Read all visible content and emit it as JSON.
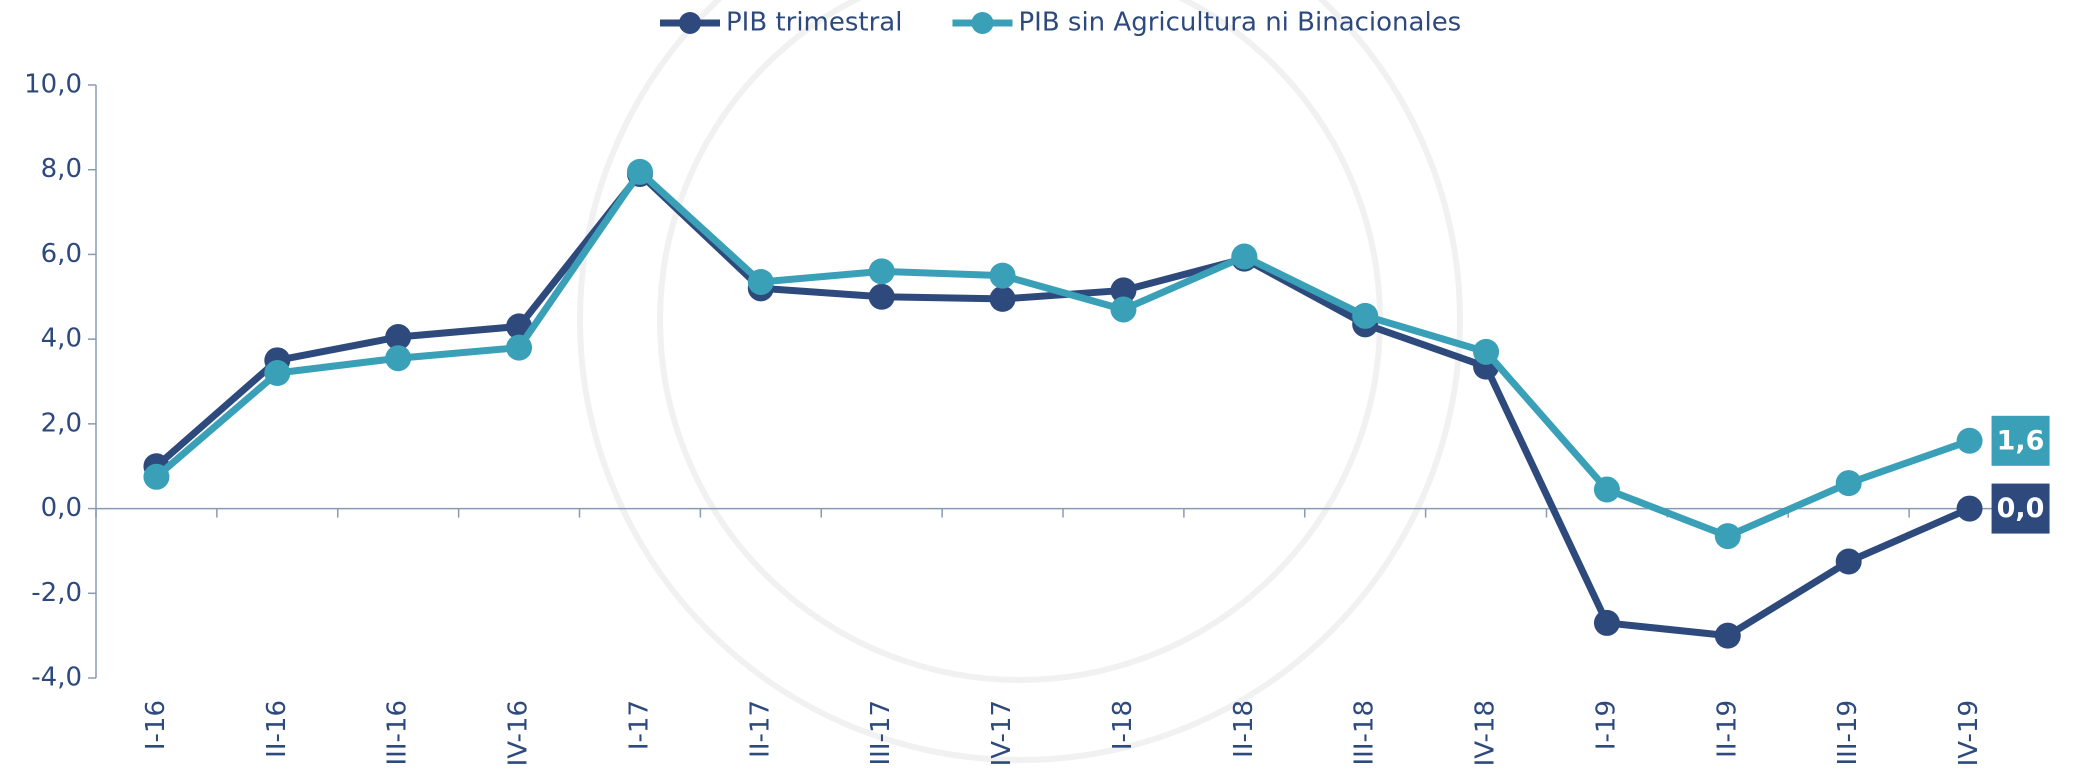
{
  "chart_data": {
    "type": "line",
    "categories": [
      "I-16",
      "II-16",
      "III-16",
      "IV-16",
      "I-17",
      "II-17",
      "III-17",
      "IV-17",
      "I-18",
      "II-18",
      "III-18",
      "IV-18",
      "I-19",
      "II-19",
      "III-19",
      "IV-19"
    ],
    "series": [
      {
        "name": "PIB trimestral",
        "color": "#2e4a7d",
        "values": [
          1.0,
          3.5,
          4.05,
          4.3,
          7.9,
          5.2,
          5.0,
          4.95,
          5.15,
          5.9,
          4.35,
          3.35,
          -2.7,
          -3.0,
          -1.25,
          0.0
        ],
        "value_labels": [
          null,
          null,
          null,
          null,
          null,
          null,
          null,
          null,
          null,
          null,
          null,
          null,
          null,
          null,
          null,
          "0,0"
        ]
      },
      {
        "name": "PIB sin Agricultura ni Binacionales",
        "color": "#3aa0b8",
        "values": [
          0.75,
          3.2,
          3.55,
          3.8,
          7.95,
          5.35,
          5.6,
          5.5,
          4.7,
          5.95,
          4.55,
          3.7,
          0.45,
          -0.65,
          0.6,
          1.6
        ],
        "value_labels": [
          null,
          null,
          null,
          null,
          null,
          null,
          null,
          null,
          null,
          null,
          null,
          null,
          null,
          null,
          null,
          "1,6"
        ]
      }
    ],
    "ylim": [
      -4,
      10
    ],
    "yticks": [
      {
        "value": -4,
        "label": "-4,0"
      },
      {
        "value": -2,
        "label": "-2,0"
      },
      {
        "value": 0,
        "label": "0,0"
      },
      {
        "value": 2,
        "label": "2,0"
      },
      {
        "value": 4,
        "label": "4,0"
      },
      {
        "value": 6,
        "label": "6,0"
      },
      {
        "value": 8,
        "label": "8,0"
      },
      {
        "value": 10,
        "label": "10,0"
      }
    ],
    "legend": "top"
  }
}
